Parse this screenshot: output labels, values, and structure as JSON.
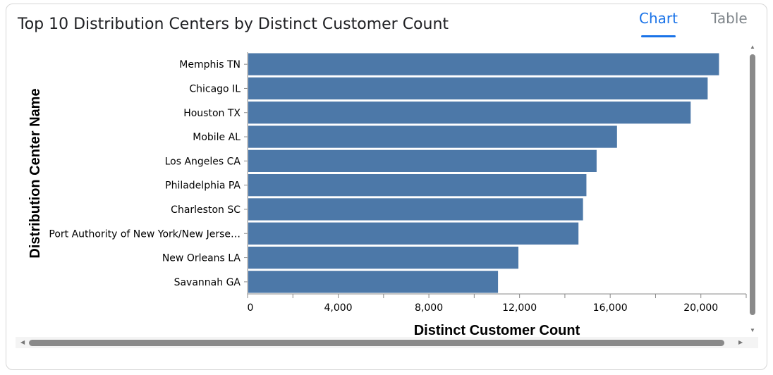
{
  "card": {
    "title": "Top 10 Distribution Centers by Distinct Customer Count",
    "tabs": [
      {
        "label": "Chart",
        "active": true
      },
      {
        "label": "Table",
        "active": false
      }
    ]
  },
  "colors": {
    "bar": "#4c78a8",
    "accent": "#1a73e8",
    "inactive_tab": "#80868b"
  },
  "chart_data": {
    "type": "bar",
    "orientation": "horizontal",
    "xlabel": "Distinct Customer Count",
    "ylabel": "Distribution Center Name",
    "xlim": [
      0,
      22000
    ],
    "xticks": [
      0,
      4000,
      8000,
      12000,
      16000,
      20000
    ],
    "xtick_labels": [
      "0",
      "4,000",
      "8,000",
      "12,000",
      "16,000",
      "20,000"
    ],
    "grid": false,
    "categories": [
      "Memphis TN",
      "Chicago IL",
      "Houston TX",
      "Mobile AL",
      "Los Angeles CA",
      "Philadelphia PA",
      "Charleston SC",
      "Port Authority of New York/New Jerse…",
      "New Orleans LA",
      "Savannah GA"
    ],
    "values": [
      20800,
      20300,
      19550,
      16300,
      15400,
      14950,
      14800,
      14600,
      11950,
      11050
    ]
  },
  "scrollbars": {
    "vertical_icons": [
      "arrow-up-icon",
      "arrow-down-icon"
    ],
    "horizontal_icons": [
      "arrow-left-icon",
      "arrow-right-icon"
    ]
  }
}
